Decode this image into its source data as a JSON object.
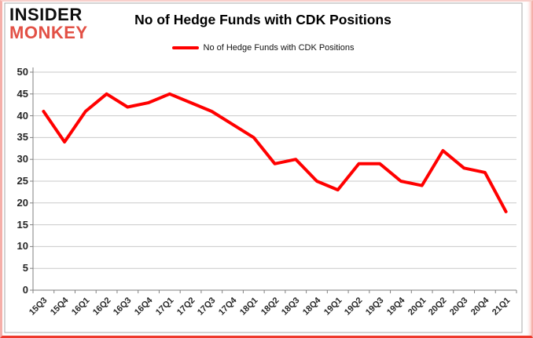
{
  "brand": {
    "line1": "INSIDER",
    "line2": "MONKEY",
    "accent_color": "#e25045"
  },
  "header": {
    "title": "No of Hedge Funds with CDK Positions"
  },
  "legend": {
    "label": "No of Hedge Funds with CDK Positions",
    "line_color": "#ff0000"
  },
  "chart_data": {
    "type": "line",
    "title": "No of Hedge Funds with CDK Positions",
    "categories": [
      "15Q3",
      "15Q4",
      "16Q1",
      "16Q2",
      "16Q3",
      "16Q4",
      "17Q1",
      "17Q2",
      "17Q3",
      "17Q4",
      "18Q1",
      "18Q2",
      "18Q3",
      "18Q4",
      "19Q1",
      "19Q2",
      "19Q3",
      "19Q4",
      "20Q1",
      "20Q2",
      "20Q3",
      "20Q4",
      "21Q1"
    ],
    "values": [
      41,
      34,
      41,
      45,
      42,
      43,
      45,
      43,
      41,
      38,
      35,
      29,
      30,
      25,
      23,
      29,
      29,
      25,
      24,
      32,
      28,
      27,
      18
    ],
    "xlabel": "",
    "ylabel": "",
    "ylim": [
      0,
      50
    ],
    "ytick_step": 5,
    "grid": true,
    "legend_position": "top",
    "line_color": "#ff0000",
    "line_width": 4,
    "gridline_color": "#c9c9c9",
    "axis_color": "#808080",
    "frame_color": "#a9a9a9",
    "tick_label_color": "#262626"
  }
}
